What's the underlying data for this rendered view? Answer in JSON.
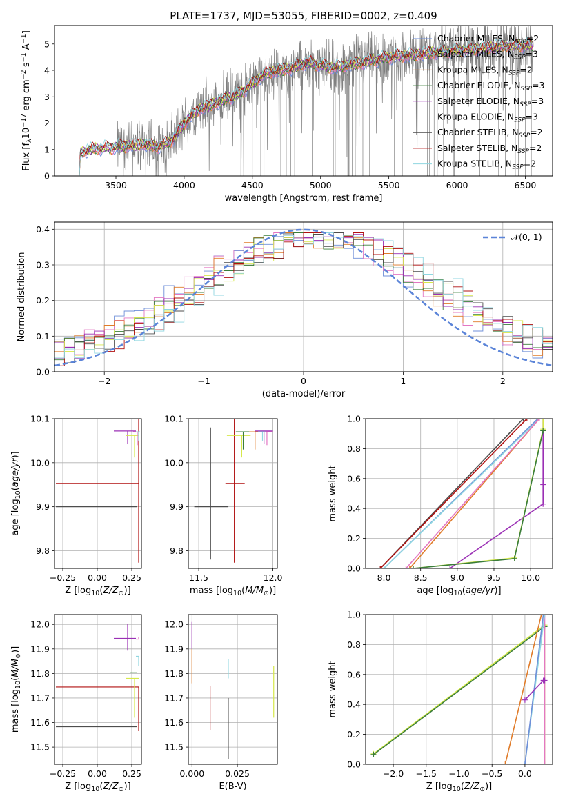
{
  "title": "PLATE=1737, MJD=53055, FIBERID=0002, z=0.409",
  "colors": {
    "Chabrier MILES": "#6f8fd8",
    "Salpeter MILES": "#e377c2",
    "Kroupa MILES": "#e07b29",
    "Chabrier ELODIE": "#3a7d3a",
    "Salpeter ELODIE": "#9b30b5",
    "Kroupa ELODIE": "#d6e84a",
    "Chabrier STELIB": "#4d4d4d",
    "Salpeter STELIB": "#b01010",
    "Kroupa STELIB": "#8fd6e0",
    "data": "#808080",
    "normal": "#5b84d8"
  },
  "chart_data": [
    {
      "id": "spectrum",
      "type": "line",
      "xlabel": "wavelength [Angstrom, rest frame]",
      "ylabel": "Flux [f_λ 10^-17 erg cm^-2 s^-1 A^-1]",
      "xlim": [
        3050,
        6700
      ],
      "ylim": [
        0,
        5.7
      ],
      "xticks": [
        3500,
        4000,
        4500,
        5000,
        5500,
        6000,
        6500
      ],
      "yticks": [
        0,
        1,
        2,
        3,
        4,
        5
      ],
      "legend_position": "top-right",
      "series": [
        {
          "name": "Chabrier MILES, N_SSP=2",
          "name_main": "Chabrier MILES, N",
          "name_sub": "SSP",
          "name_tail": "=2",
          "key": "Chabrier MILES"
        },
        {
          "name": "Salpeter MILES, N_SSP=3",
          "name_main": "Salpeter MILES, N",
          "name_sub": "SSP",
          "name_tail": "=3",
          "key": "Salpeter MILES"
        },
        {
          "name": "Kroupa MILES, N_SSP=2",
          "name_main": "Kroupa MILES, N",
          "name_sub": "SSP",
          "name_tail": "=2",
          "key": "Kroupa MILES"
        },
        {
          "name": "Chabrier ELODIE, N_SSP=3",
          "name_main": "Chabrier ELODIE, N",
          "name_sub": "SSP",
          "name_tail": "=3",
          "key": "Chabrier ELODIE"
        },
        {
          "name": "Salpeter ELODIE, N_SSP=3",
          "name_main": "Salpeter ELODIE, N",
          "name_sub": "SSP",
          "name_tail": "=3",
          "key": "Salpeter ELODIE"
        },
        {
          "name": "Kroupa ELODIE, N_SSP=3",
          "name_main": "Kroupa ELODIE, N",
          "name_sub": "SSP",
          "name_tail": "=3",
          "key": "Kroupa ELODIE"
        },
        {
          "name": "Chabrier STELIB, N_SSP=2",
          "name_main": "Chabrier STELIB, N",
          "name_sub": "SSP",
          "name_tail": "=2",
          "key": "Chabrier STELIB"
        },
        {
          "name": "Salpeter STELIB, N_SSP=2",
          "name_main": "Salpeter STELIB, N",
          "name_sub": "SSP",
          "name_tail": "=2",
          "key": "Salpeter STELIB"
        },
        {
          "name": "Kroupa STELIB, N_SSP=2",
          "name_main": "Kroupa STELIB, N",
          "name_sub": "SSP",
          "name_tail": "=2",
          "key": "Kroupa STELIB"
        }
      ],
      "model_profile": {
        "x": [
          3230,
          3240,
          3300,
          3400,
          3500,
          3600,
          3700,
          3800,
          3900,
          3950,
          4000,
          4100,
          4200,
          4300,
          4400,
          4500,
          4600,
          4700,
          4800,
          4900,
          5000,
          5100,
          5200,
          5300,
          5400,
          5500,
          5600,
          5700,
          5800,
          5900,
          6000,
          6100,
          6200,
          6300,
          6400,
          6500
        ],
        "y": [
          0,
          0.85,
          1.0,
          1.05,
          1.1,
          1.15,
          1.2,
          1.1,
          1.3,
          1.6,
          2.0,
          2.5,
          2.7,
          2.9,
          3.1,
          3.5,
          3.9,
          4.0,
          4.1,
          4.3,
          4.2,
          4.1,
          4.2,
          4.3,
          4.4,
          4.5,
          4.55,
          4.6,
          4.65,
          4.7,
          4.75,
          4.8,
          4.85,
          4.9,
          4.92,
          4.95
        ]
      },
      "data_noisy_range": [
        3510,
        6560
      ]
    },
    {
      "id": "residuals",
      "type": "area",
      "xlabel": "(data-model)/error",
      "ylabel": "Normed distribution",
      "xlim": [
        -2.5,
        2.5
      ],
      "ylim": [
        0,
        0.42
      ],
      "xticks": [
        -2,
        -1,
        0,
        1,
        2
      ],
      "yticks": [
        0.0,
        0.1,
        0.2,
        0.3,
        0.4
      ],
      "legend_label": "𝒩(0, 1)",
      "legend_position": "top-right",
      "bin_width": 0.1,
      "gaussian": {
        "mean": 0,
        "sigma": 1
      }
    },
    {
      "id": "age-vs-Z",
      "type": "scatter",
      "xlabel": "Z [log10(Z/Z☉)]",
      "ylabel": "age  [log10(age/yr)]",
      "xlim": [
        -0.31,
        0.32
      ],
      "ylim": [
        9.76,
        10.1
      ],
      "xticks": [
        -0.25,
        0.0,
        0.25
      ],
      "yticks": [
        9.8,
        9.9,
        10.0,
        10.1
      ],
      "crosses": [
        {
          "key": "Salpeter STELIB",
          "x": 0.3,
          "y": 9.953,
          "xerr": [
            0.6,
            0.0
          ],
          "yerr": [
            0.18,
            0.17
          ]
        },
        {
          "key": "Chabrier STELIB",
          "x": 0.29,
          "y": 9.9,
          "xerr": [
            0.59,
            0.0
          ],
          "yerr": [
            0.0,
            0.0
          ]
        },
        {
          "key": "Salpeter ELODIE",
          "x": 0.22,
          "y": 10.072,
          "xerr": [
            0.1,
            0.06
          ],
          "yerr": [
            0.03,
            0.0
          ]
        },
        {
          "key": "Kroupa ELODIE",
          "x": 0.27,
          "y": 10.062,
          "xerr": [
            0.06,
            0.03
          ],
          "yerr": [
            0.05,
            0.0
          ]
        },
        {
          "key": "Salpeter MILES",
          "x": 0.29,
          "y": 10.07,
          "xerr": [
            0.03,
            0.01
          ],
          "yerr": [
            0.03,
            0.0
          ]
        },
        {
          "key": "Kroupa STELIB",
          "x": 0.3,
          "y": 10.07,
          "xerr": [
            0.02,
            0.01
          ],
          "yerr": [
            0.02,
            0.0
          ]
        }
      ]
    },
    {
      "id": "age-vs-mass",
      "type": "scatter",
      "xlabel": "mass [log10(M/M☉)]",
      "ylabel": "",
      "xlim": [
        11.43,
        12.03
      ],
      "ylim": [
        9.76,
        10.1
      ],
      "xticks": [
        11.5,
        12.0
      ],
      "yticks": [
        9.8,
        9.9,
        10.0,
        10.1
      ],
      "crosses": [
        {
          "key": "Chabrier STELIB",
          "x": 11.58,
          "y": 9.9,
          "xerr": [
            0.11,
            0.12
          ],
          "yerr": [
            0.12,
            0.18
          ]
        },
        {
          "key": "Salpeter STELIB",
          "x": 11.74,
          "y": 9.953,
          "xerr": [
            0.06,
            0.07
          ],
          "yerr": [
            0.18,
            0.17
          ]
        },
        {
          "key": "Kroupa ELODIE",
          "x": 11.79,
          "y": 10.062,
          "xerr": [
            0.1,
            0.06
          ],
          "yerr": [
            0.05,
            0.0
          ]
        },
        {
          "key": "Chabrier ELODIE",
          "x": 11.8,
          "y": 10.07,
          "xerr": [
            0.05,
            0.06
          ],
          "yerr": [
            0.04,
            0.0
          ]
        },
        {
          "key": "Kroupa MILES",
          "x": 11.88,
          "y": 10.07,
          "xerr": [
            0.04,
            0.06
          ],
          "yerr": [
            0.04,
            0.0
          ]
        },
        {
          "key": "Salpeter ELODIE",
          "x": 11.94,
          "y": 10.072,
          "xerr": [
            0.06,
            0.06
          ],
          "yerr": [
            0.03,
            0.0
          ]
        },
        {
          "key": "Salpeter MILES",
          "x": 11.96,
          "y": 10.07,
          "xerr": [
            0.05,
            0.04
          ],
          "yerr": [
            0.03,
            0.0
          ]
        },
        {
          "key": "Kroupa STELIB",
          "x": 11.93,
          "y": 10.07,
          "xerr": [
            0.03,
            0.02
          ],
          "yerr": [
            0.02,
            0.0
          ]
        }
      ]
    },
    {
      "id": "weight-vs-age",
      "type": "line",
      "xlabel": "age  [log10(age/yr)]",
      "ylabel": "mass weight",
      "xlim": [
        7.75,
        10.3
      ],
      "ylim": [
        0,
        1.0
      ],
      "xticks": [
        8.0,
        8.5,
        9.0,
        9.5,
        10.0
      ],
      "yticks": [
        0.0,
        0.2,
        0.4,
        0.6,
        0.8,
        1.0
      ],
      "cumulative": [
        {
          "key": "Chabrier STELIB",
          "x": [
            7.95,
            9.9
          ],
          "y": [
            0,
            1.0
          ]
        },
        {
          "key": "Salpeter STELIB",
          "x": [
            7.95,
            9.95
          ],
          "y": [
            0,
            1.0
          ]
        },
        {
          "key": "Chabrier MILES",
          "x": [
            8.0,
            10.1
          ],
          "y": [
            0,
            1.0
          ]
        },
        {
          "key": "Kroupa STELIB",
          "x": [
            8.0,
            10.12
          ],
          "y": [
            0,
            1.0
          ]
        },
        {
          "key": "Kroupa MILES",
          "x": [
            8.35,
            10.12
          ],
          "y": [
            0,
            1.0
          ]
        },
        {
          "key": "Salpeter MILES",
          "x": [
            8.3,
            10.12
          ],
          "y": [
            0,
            1.0
          ]
        },
        {
          "key": "Salpeter ELODIE",
          "x": [
            8.9,
            10.17,
            10.17,
            10.17
          ],
          "y": [
            0,
            0.43,
            0.56,
            1.0
          ]
        },
        {
          "key": "Kroupa ELODIE",
          "x": [
            8.4,
            9.78,
            10.17,
            10.17
          ],
          "y": [
            0,
            0.07,
            0.93,
            1.0
          ]
        },
        {
          "key": "Chabrier ELODIE",
          "x": [
            8.4,
            9.78,
            10.17
          ],
          "y": [
            0,
            0.065,
            0.92
          ]
        }
      ]
    },
    {
      "id": "mass-vs-Z",
      "type": "scatter",
      "xlabel": "Z [log10(Z/Z☉)]",
      "ylabel": "mass [log10(M/M☉)]",
      "xlim": [
        -0.31,
        0.32
      ],
      "ylim": [
        11.43,
        12.04
      ],
      "xticks": [
        -0.25,
        0.0,
        0.25
      ],
      "yticks": [
        11.5,
        11.6,
        11.7,
        11.8,
        11.9,
        12.0
      ],
      "crosses": [
        {
          "key": "Chabrier STELIB",
          "x": 0.29,
          "y": 11.583,
          "xerr": [
            0.59,
            0.0
          ],
          "yerr": [
            0.0,
            0.0
          ]
        },
        {
          "key": "Salpeter STELIB",
          "x": 0.3,
          "y": 11.745,
          "xerr": [
            0.6,
            0.0
          ],
          "yerr": [
            0.18,
            0.0
          ]
        },
        {
          "key": "Kroupa ELODIE",
          "x": 0.27,
          "y": 11.78,
          "xerr": [
            0.06,
            0.03
          ],
          "yerr": [
            0.16,
            0.0
          ]
        },
        {
          "key": "Chabrier ELODIE",
          "x": 0.29,
          "y": 11.803,
          "xerr": [
            0.05,
            0.0
          ],
          "yerr": [
            0.0,
            0.0
          ]
        },
        {
          "key": "Salpeter ELODIE",
          "x": 0.22,
          "y": 11.943,
          "xerr": [
            0.1,
            0.06
          ],
          "yerr": [
            0.05,
            0.06
          ]
        },
        {
          "key": "Salpeter MILES",
          "x": 0.3,
          "y": 11.94,
          "xerr": [
            0.02,
            0.0
          ],
          "yerr": [
            0.0,
            0.01
          ]
        },
        {
          "key": "Kroupa STELIB",
          "x": 0.3,
          "y": 11.87,
          "xerr": [
            0.02,
            0.0
          ],
          "yerr": [
            0.04,
            0.0
          ]
        }
      ]
    },
    {
      "id": "mass-vs-EBV",
      "type": "scatter",
      "xlabel": "E(B-V)",
      "ylabel": "",
      "xlim": [
        -0.002,
        0.047
      ],
      "ylim": [
        11.43,
        12.04
      ],
      "xticks": [
        0.0,
        0.025
      ],
      "yticks": [
        11.5,
        11.6,
        11.7,
        11.8,
        11.9,
        12.0
      ],
      "bars": [
        {
          "key": "Salpeter ELODIE",
          "x": 0.0,
          "y0": 11.9,
          "y1": 12.01
        },
        {
          "key": "Kroupa MILES",
          "x": 0.0,
          "y0": 11.76,
          "y1": 11.9
        },
        {
          "key": "Salpeter STELIB",
          "x": 0.01,
          "y0": 11.57,
          "y1": 11.75
        },
        {
          "key": "Kroupa STELIB",
          "x": 0.02,
          "y0": 11.78,
          "y1": 11.86
        },
        {
          "key": "Chabrier STELIB",
          "x": 0.02,
          "y0": 11.45,
          "y1": 11.7
        },
        {
          "key": "Kroupa ELODIE",
          "x": 0.045,
          "y0": 11.62,
          "y1": 11.83
        }
      ]
    },
    {
      "id": "weight-vs-Z",
      "type": "line",
      "xlabel": "Z [log10(Z/Z☉)]",
      "ylabel": "mass weight",
      "xlim": [
        -2.42,
        0.42
      ],
      "ylim": [
        0,
        1.0
      ],
      "xticks": [
        -2.0,
        -1.5,
        -1.0,
        -0.5,
        0.0
      ],
      "yticks": [
        0.0,
        0.2,
        0.4,
        0.6,
        0.8,
        1.0
      ],
      "cumulative": [
        {
          "key": "Kroupa ELODIE",
          "x": [
            -2.3,
            0.3,
            0.3
          ],
          "y": [
            0.07,
            0.93,
            0.0
          ]
        },
        {
          "key": "Chabrier ELODIE",
          "x": [
            -2.3,
            0.3
          ],
          "y": [
            0.065,
            0.92
          ]
        },
        {
          "key": "Kroupa MILES",
          "x": [
            -0.3,
            0.25
          ],
          "y": [
            0,
            1.0
          ]
        },
        {
          "key": "Salpeter MILES",
          "x": [
            0.3,
            0.3
          ],
          "y": [
            0,
            1.0
          ]
        },
        {
          "key": "Kroupa STELIB",
          "x": [
            0.0,
            0.3
          ],
          "y": [
            0,
            1.0
          ]
        },
        {
          "key": "Chabrier MILES",
          "x": [
            0.0,
            0.28
          ],
          "y": [
            0,
            1.0
          ]
        },
        {
          "key": "Salpeter ELODIE",
          "x": [
            0.0,
            0.28,
            0.3
          ],
          "y": [
            0.43,
            0.56,
            0.56
          ]
        }
      ]
    }
  ]
}
